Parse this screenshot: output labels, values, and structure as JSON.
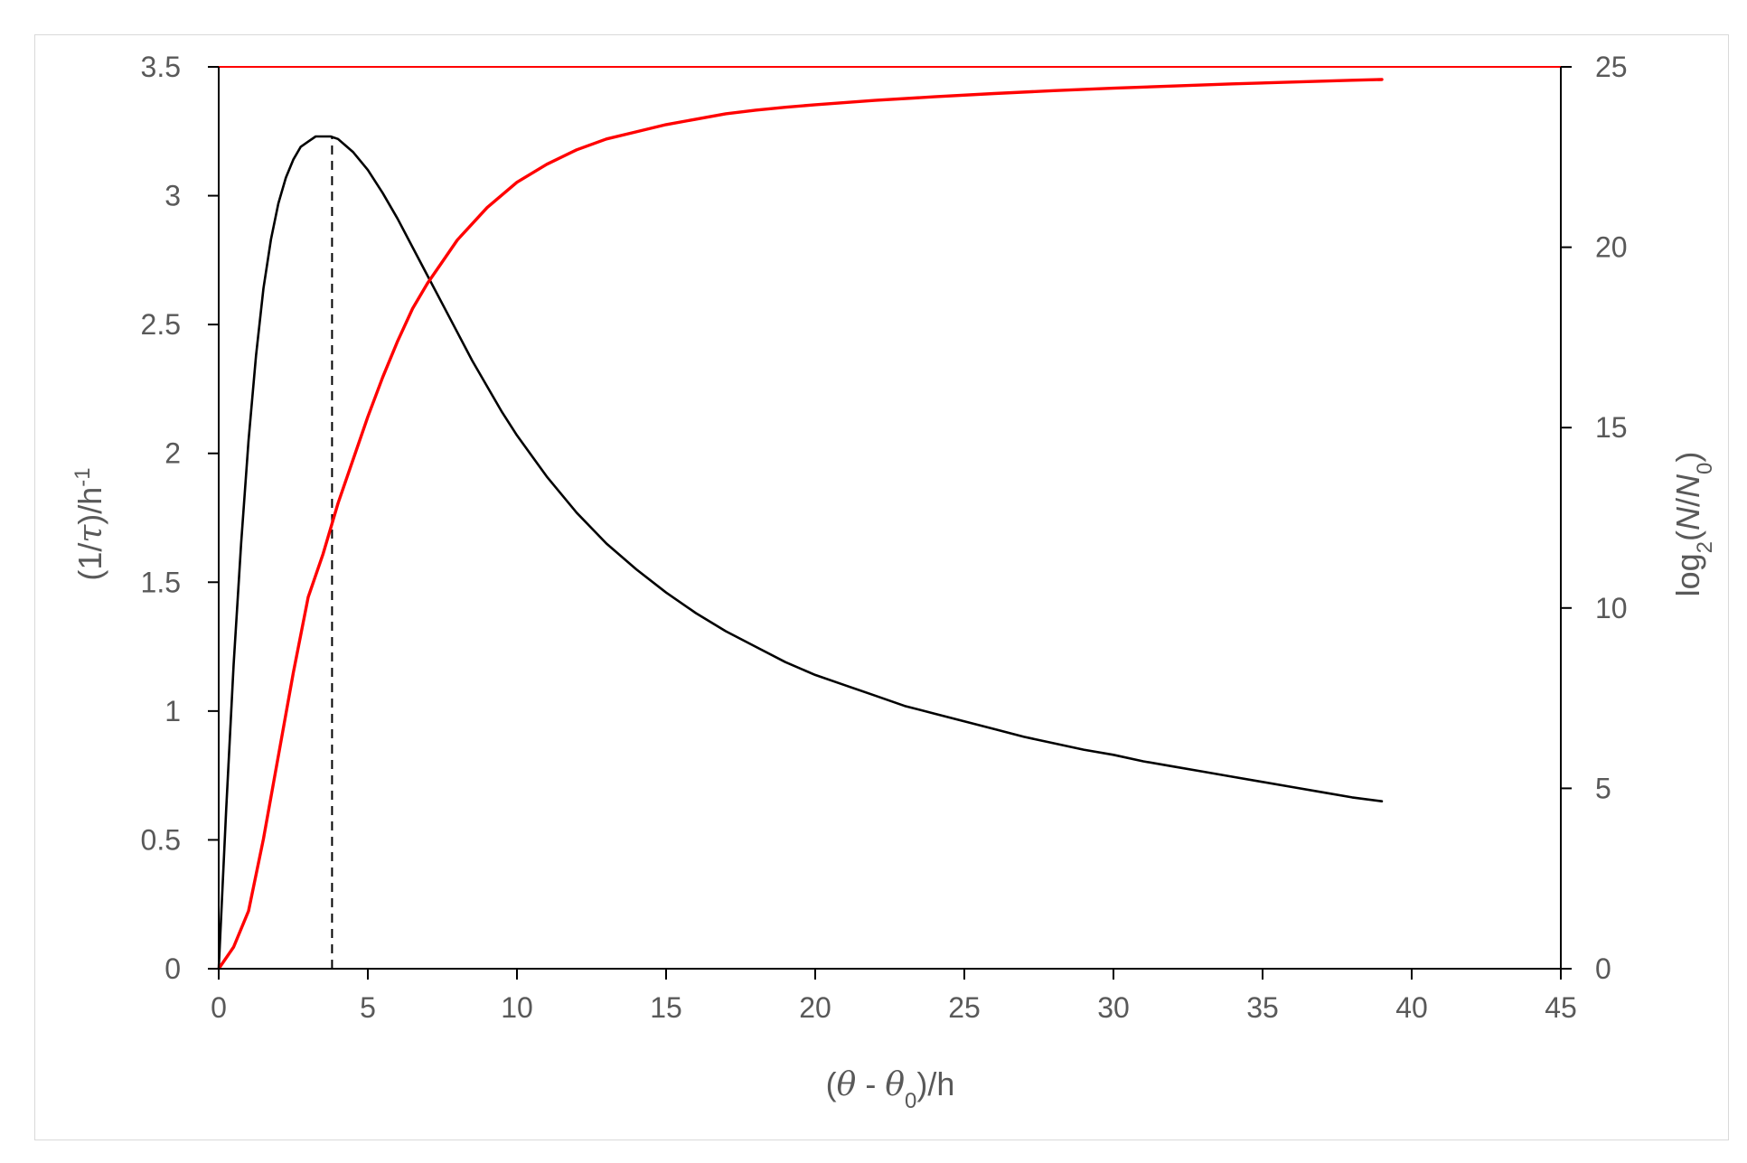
{
  "chart_data": {
    "type": "line",
    "xlabel": "(θ - θ0)/h",
    "ylabel_left": "(1/τ)/h-1",
    "ylabel_right": "log2(N/N0)",
    "xlim": [
      0,
      45
    ],
    "ylim_left": [
      0,
      3.5
    ],
    "ylim_right": [
      0,
      25
    ],
    "x_ticks": [
      "0",
      "5",
      "10",
      "15",
      "20",
      "25",
      "30",
      "35",
      "40",
      "45"
    ],
    "y_left_ticks": [
      "0",
      "0.5",
      "1",
      "1.5",
      "2",
      "2.5",
      "3",
      "3.5"
    ],
    "y_right_ticks": [
      "0",
      "5",
      "10",
      "15",
      "20",
      "25"
    ],
    "grid": false,
    "colors": {
      "black_series": "#000000",
      "red_series": "#ff0000",
      "top_line": "#ff0000",
      "text": "#595959",
      "axis": "#000000"
    },
    "series": [
      {
        "axis": "left",
        "color": "#000000",
        "x": [
          0,
          0.25,
          0.5,
          0.75,
          1,
          1.25,
          1.5,
          1.75,
          2,
          2.25,
          2.5,
          2.75,
          3,
          3.25,
          3.5,
          3.75,
          4,
          4.5,
          5,
          5.5,
          6,
          6.5,
          7,
          7.5,
          8,
          8.5,
          9,
          9.5,
          10,
          11,
          12,
          13,
          14,
          15,
          16,
          17,
          18,
          19,
          20,
          21,
          22,
          23,
          24,
          25,
          26,
          27,
          28,
          29,
          30,
          31,
          32,
          33,
          34,
          35,
          36,
          37,
          38,
          39
        ],
        "values": [
          0,
          0.62,
          1.18,
          1.65,
          2.05,
          2.38,
          2.64,
          2.83,
          2.97,
          3.07,
          3.14,
          3.19,
          3.21,
          3.23,
          3.23,
          3.23,
          3.22,
          3.17,
          3.1,
          3.01,
          2.91,
          2.8,
          2.69,
          2.58,
          2.47,
          2.36,
          2.26,
          2.16,
          2.07,
          1.91,
          1.77,
          1.65,
          1.55,
          1.46,
          1.38,
          1.31,
          1.25,
          1.19,
          1.14,
          1.1,
          1.06,
          1.02,
          0.99,
          0.96,
          0.93,
          0.9,
          0.875,
          0.85,
          0.83,
          0.805,
          0.785,
          0.765,
          0.745,
          0.725,
          0.705,
          0.685,
          0.665,
          0.65
        ]
      },
      {
        "axis": "right",
        "color": "#ff0000",
        "x": [
          0,
          0.5,
          1,
          1.5,
          2,
          2.5,
          3,
          3.5,
          4,
          4.5,
          5,
          5.5,
          6,
          6.5,
          7,
          7.5,
          8,
          9,
          10,
          11,
          12,
          13,
          14,
          15,
          16,
          17,
          18,
          19,
          20,
          22,
          24,
          26,
          28,
          30,
          32,
          34,
          36,
          38,
          39
        ],
        "values": [
          0,
          0.6,
          1.6,
          3.6,
          5.9,
          8.2,
          10.3,
          11.5,
          12.9,
          14.1,
          15.3,
          16.4,
          17.4,
          18.3,
          19.0,
          19.6,
          20.2,
          21.1,
          21.8,
          22.3,
          22.7,
          23.0,
          23.2,
          23.4,
          23.55,
          23.7,
          23.8,
          23.88,
          23.95,
          24.07,
          24.17,
          24.26,
          24.34,
          24.41,
          24.47,
          24.53,
          24.58,
          24.63,
          24.65
        ]
      }
    ],
    "reference_lines": {
      "vertical_dashed_x": 3.8,
      "horizontal_top_right_value": 25
    }
  }
}
